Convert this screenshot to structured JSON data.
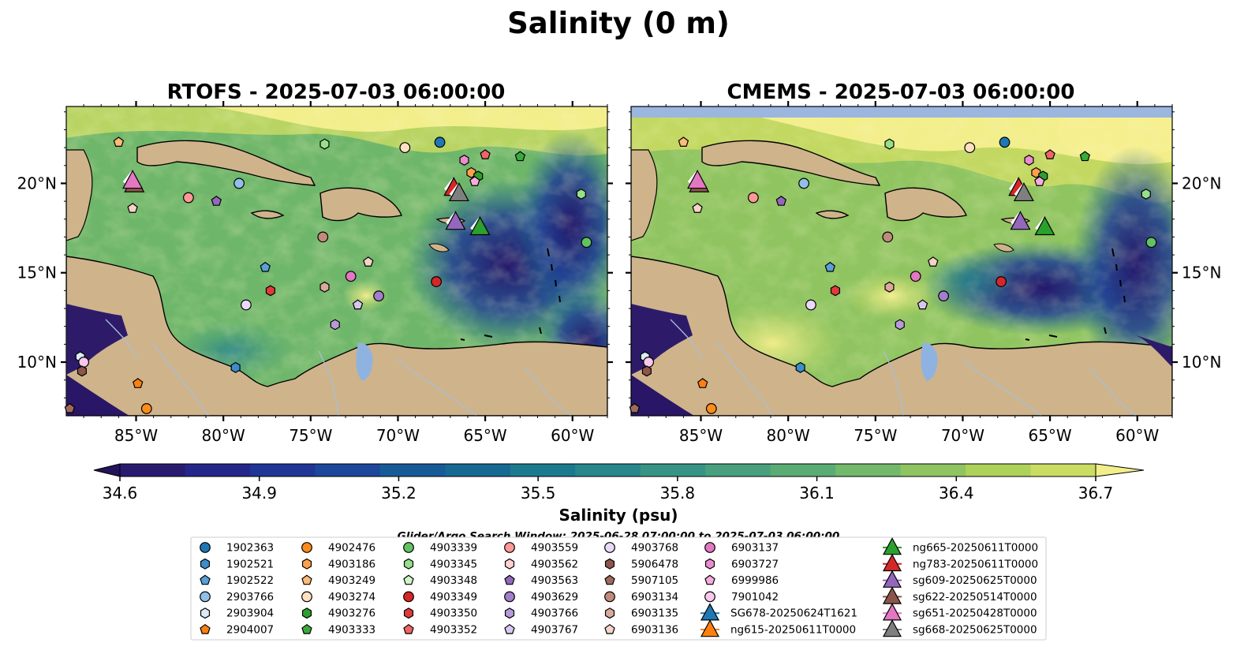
{
  "figure": {
    "title": "Salinity (0 m)"
  },
  "panels": [
    {
      "title": "RTOFS - 2025-07-03 06:00:00"
    },
    {
      "title": "CMEMS - 2025-07-03 06:00:00"
    }
  ],
  "axes": {
    "lon_ticks": [
      {
        "value": -85,
        "label": "85°W"
      },
      {
        "value": -80,
        "label": "80°W"
      },
      {
        "value": -75,
        "label": "75°W"
      },
      {
        "value": -70,
        "label": "70°W"
      },
      {
        "value": -65,
        "label": "65°W"
      },
      {
        "value": -60,
        "label": "60°W"
      }
    ],
    "lat_ticks": [
      {
        "value": 20,
        "label": "20°N"
      },
      {
        "value": 15,
        "label": "15°N"
      },
      {
        "value": 10,
        "label": "10°N"
      }
    ]
  },
  "colorbar": {
    "label": "Salinity (psu)",
    "colors": [
      "#24125a",
      "#281b70",
      "#25268a",
      "#213596",
      "#1c479b",
      "#175a98",
      "#166a92",
      "#1c7a8e",
      "#27878a",
      "#379485",
      "#48a07e",
      "#5aac74",
      "#73b96a",
      "#8fc461",
      "#aed15a",
      "#cbdc62",
      "#f2ee8a"
    ],
    "ticks": [
      {
        "value": 34.6,
        "label": "34.6"
      },
      {
        "value": 34.9,
        "label": "34.9"
      },
      {
        "value": 35.2,
        "label": "35.2"
      },
      {
        "value": 35.5,
        "label": "35.5"
      },
      {
        "value": 35.8,
        "label": "35.8"
      },
      {
        "value": 36.1,
        "label": "36.1"
      },
      {
        "value": 36.4,
        "label": "36.4"
      },
      {
        "value": 36.7,
        "label": "36.7"
      }
    ]
  },
  "legend": {
    "title": "Glider/Argo Search Window: 2025-06-28 07:00:00 to 2025-07-03 06:00:00",
    "columns": [
      [
        {
          "label": "1902363",
          "marker": "circle",
          "color": "#1f77b4"
        },
        {
          "label": "1902521",
          "marker": "hexagon",
          "color": "#3c8dc9"
        },
        {
          "label": "1902522",
          "marker": "pentagon",
          "color": "#5aa0d8"
        },
        {
          "label": "2903766",
          "marker": "circle",
          "color": "#91bfe8"
        },
        {
          "label": "2903904",
          "marker": "hexagon",
          "color": "#d9eaf8"
        },
        {
          "label": "2904007",
          "marker": "pentagon",
          "color": "#ff7f0e"
        }
      ],
      [
        {
          "label": "4902476",
          "marker": "circle",
          "color": "#ff8c1a"
        },
        {
          "label": "4903186",
          "marker": "hexagon",
          "color": "#ffa04d"
        },
        {
          "label": "4903249",
          "marker": "pentagon",
          "color": "#ffbb78"
        },
        {
          "label": "4903274",
          "marker": "circle",
          "color": "#ffe1c2"
        },
        {
          "label": "4903276",
          "marker": "hexagon",
          "color": "#2ca02c"
        },
        {
          "label": "4903333",
          "marker": "pentagon",
          "color": "#3aaa3a"
        }
      ],
      [
        {
          "label": "4903339",
          "marker": "circle",
          "color": "#62c262"
        },
        {
          "label": "4903345",
          "marker": "hexagon",
          "color": "#98df8a"
        },
        {
          "label": "4903348",
          "marker": "pentagon",
          "color": "#d0f5c8"
        },
        {
          "label": "4903349",
          "marker": "circle",
          "color": "#d62728"
        },
        {
          "label": "4903350",
          "marker": "hexagon",
          "color": "#e03a3b"
        },
        {
          "label": "4903352",
          "marker": "pentagon",
          "color": "#f06466"
        }
      ],
      [
        {
          "label": "4903559",
          "marker": "circle",
          "color": "#ff9896"
        },
        {
          "label": "4903562",
          "marker": "hexagon",
          "color": "#ffd2d0"
        },
        {
          "label": "4903563",
          "marker": "pentagon",
          "color": "#9467bd"
        },
        {
          "label": "4903629",
          "marker": "circle",
          "color": "#a27ecb"
        },
        {
          "label": "4903766",
          "marker": "hexagon",
          "color": "#b89ad9"
        },
        {
          "label": "4903767",
          "marker": "pentagon",
          "color": "#d9c6f0"
        }
      ],
      [
        {
          "label": "4903768",
          "marker": "circle",
          "color": "#ead9fa"
        },
        {
          "label": "5906478",
          "marker": "hexagon",
          "color": "#8c564b"
        },
        {
          "label": "5907105",
          "marker": "pentagon",
          "color": "#9e6a5e"
        },
        {
          "label": "6903134",
          "marker": "circle",
          "color": "#c08a7c"
        },
        {
          "label": "6903135",
          "marker": "hexagon",
          "color": "#dba99a"
        },
        {
          "label": "6903136",
          "marker": "pentagon",
          "color": "#f5d3c8"
        }
      ],
      [
        {
          "label": "6903137",
          "marker": "circle",
          "color": "#e377c2"
        },
        {
          "label": "6903727",
          "marker": "hexagon",
          "color": "#ea8dd0"
        },
        {
          "label": "6999986",
          "marker": "pentagon",
          "color": "#f4acdf"
        },
        {
          "label": "7901042",
          "marker": "circle",
          "color": "#f9c8ec"
        },
        {
          "label": "SG678-20250624T1621",
          "marker": "triangle",
          "color": "#1f77b4"
        },
        {
          "label": "ng615-20250611T0000",
          "marker": "triangle",
          "color": "#ff7f0e"
        }
      ],
      [
        {
          "label": "ng665-20250611T0000",
          "marker": "triangle",
          "color": "#2ca02c"
        },
        {
          "label": "ng783-20250611T0000",
          "marker": "triangle",
          "color": "#d62728"
        },
        {
          "label": "sg609-20250625T0000",
          "marker": "triangle",
          "color": "#9467bd"
        },
        {
          "label": "sg622-20250514T0000",
          "marker": "triangle",
          "color": "#8c564b"
        },
        {
          "label": "sg651-20250428T0000",
          "marker": "triangle",
          "color": "#e377c2"
        },
        {
          "label": "sg668-20250625T0000",
          "marker": "triangle",
          "color": "#7f7f7f"
        }
      ]
    ]
  },
  "chart_data": {
    "type": "heatmap",
    "title": "Salinity (0 m)",
    "panels": [
      "RTOFS - 2025-07-03 06:00:00",
      "CMEMS - 2025-07-03 06:00:00"
    ],
    "xlim": [
      -89,
      -58
    ],
    "ylim": [
      7,
      24.3
    ],
    "colorbar_range": [
      34.6,
      36.7
    ],
    "colorbar_label": "Salinity (psu)",
    "points": [
      {
        "id": "1902363",
        "lon": -67.6,
        "lat": 22.3
      },
      {
        "id": "4903274",
        "lon": -69.6,
        "lat": 22.0
      },
      {
        "id": "4903345",
        "lon": -74.2,
        "lat": 22.2
      },
      {
        "id": "4903249",
        "lon": -86.0,
        "lat": 22.3
      },
      {
        "id": "4903352",
        "lon": -65.0,
        "lat": 21.6
      },
      {
        "id": "4903333",
        "lon": -63.0,
        "lat": 21.5
      },
      {
        "id": "6903727",
        "lon": -66.2,
        "lat": 21.3
      },
      {
        "id": "4903186",
        "lon": -65.8,
        "lat": 20.6
      },
      {
        "id": "4903276",
        "lon": -65.4,
        "lat": 20.4
      },
      {
        "id": "6999986",
        "lon": -65.6,
        "lat": 20.1
      },
      {
        "id": "2903766",
        "lon": -79.1,
        "lat": 20.0
      },
      {
        "id": "4903559",
        "lon": -82.0,
        "lat": 19.2
      },
      {
        "id": "4903563",
        "lon": -80.4,
        "lat": 19.0
      },
      {
        "id": "6903136",
        "lon": -85.2,
        "lat": 18.6
      },
      {
        "id": "4903345b",
        "lon": -59.5,
        "lat": 19.4
      },
      {
        "id": "4903339",
        "lon": -59.2,
        "lat": 16.7
      },
      {
        "id": "6903134",
        "lon": -74.3,
        "lat": 17.0
      },
      {
        "id": "1902522",
        "lon": -77.6,
        "lat": 15.3
      },
      {
        "id": "6903136b",
        "lon": -71.7,
        "lat": 15.6
      },
      {
        "id": "6903137",
        "lon": -72.7,
        "lat": 14.8
      },
      {
        "id": "4903349",
        "lon": -67.8,
        "lat": 14.5
      },
      {
        "id": "6903135",
        "lon": -74.2,
        "lat": 14.2
      },
      {
        "id": "4903350",
        "lon": -77.3,
        "lat": 14.0
      },
      {
        "id": "4903629",
        "lon": -71.1,
        "lat": 13.7
      },
      {
        "id": "4903768",
        "lon": -78.7,
        "lat": 13.2
      },
      {
        "id": "4903767",
        "lon": -72.3,
        "lat": 13.2
      },
      {
        "id": "4903766",
        "lon": -73.6,
        "lat": 12.1
      },
      {
        "id": "1902521",
        "lon": -79.3,
        "lat": 9.7
      },
      {
        "id": "2903904",
        "lon": -88.2,
        "lat": 10.3
      },
      {
        "id": "7901042",
        "lon": -88.0,
        "lat": 10.0
      },
      {
        "id": "5906478",
        "lon": -88.1,
        "lat": 9.5
      },
      {
        "id": "2904007",
        "lon": -84.9,
        "lat": 8.8
      },
      {
        "id": "5907105",
        "lon": -88.8,
        "lat": 7.4
      },
      {
        "id": "4902476",
        "lon": -84.4,
        "lat": 7.4
      },
      {
        "id": "ng783-20250611T0000",
        "lon": -66.8,
        "lat": 19.7
      },
      {
        "id": "sg668-20250625T0000",
        "lon": -66.5,
        "lat": 19.4
      },
      {
        "id": "sg609-20250625T0000",
        "lon": -66.7,
        "lat": 17.8
      },
      {
        "id": "ng665-20250611T0000",
        "lon": -65.3,
        "lat": 17.5
      },
      {
        "id": "sg622-20250514T0000",
        "lon": -85.1,
        "lat": 19.9
      },
      {
        "id": "sg651-20250428T0000",
        "lon": -85.2,
        "lat": 20.1
      }
    ]
  }
}
